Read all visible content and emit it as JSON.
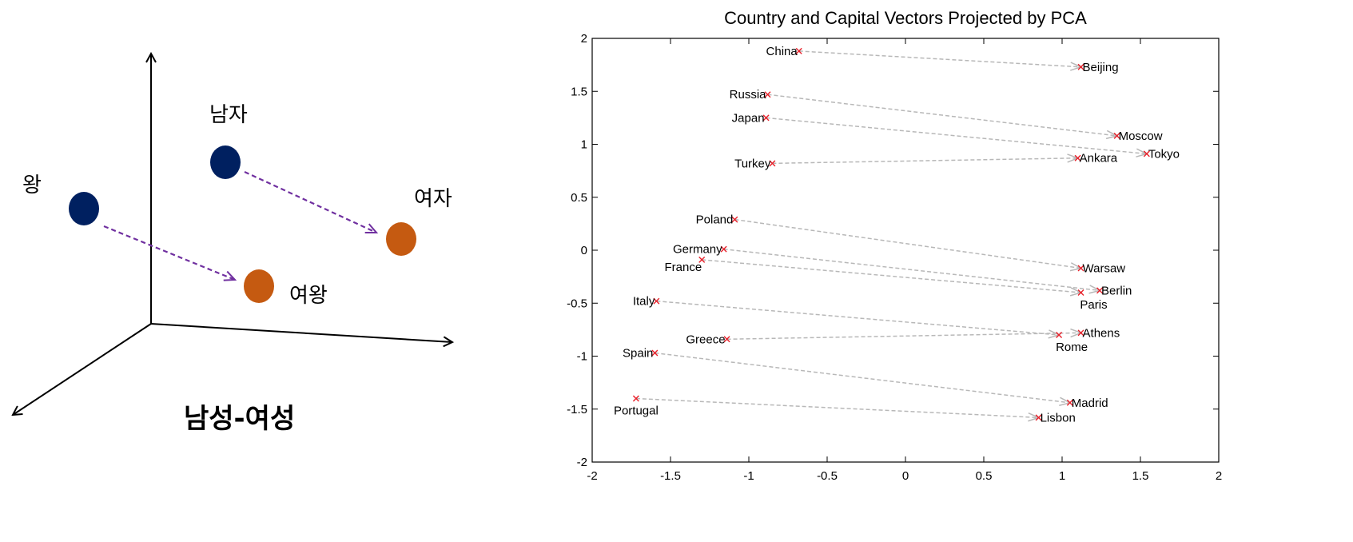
{
  "left_diagram": {
    "words": {
      "king": "왕",
      "man": "남자",
      "woman": "여자",
      "queen": "여왕"
    },
    "caption": "남성-여성",
    "colors": {
      "male_dot": "#002060",
      "female_dot": "#C55A11",
      "arrow": "#7030A0",
      "axis": "#000000"
    }
  },
  "chart_data": {
    "type": "scatter",
    "title": "Country and Capital Vectors Projected by PCA",
    "xlim": [
      -2,
      2
    ],
    "ylim": [
      -2,
      2
    ],
    "xticks": [
      -2,
      -1.5,
      -1,
      -0.5,
      0,
      0.5,
      1,
      1.5,
      2
    ],
    "yticks": [
      2,
      1.5,
      1,
      0.5,
      0,
      -0.5,
      -1,
      -1.5,
      -2
    ],
    "xtick_labels": [
      "-2",
      "-1.5",
      "-1",
      "-0.5",
      "0",
      "0.5",
      "1",
      "1.5",
      "2"
    ],
    "ytick_labels": [
      "2",
      "1.5",
      "1",
      "0.5",
      "0",
      "-0.5",
      "-1",
      "-1.5",
      "-2"
    ],
    "marker_color": "#E8202A",
    "arrow_color": "#B8B8B8",
    "pairs": [
      {
        "country": "China",
        "cx": -0.68,
        "cy": 1.88,
        "capital": "Beijing",
        "px": 1.12,
        "py": 1.73
      },
      {
        "country": "Russia",
        "cx": -0.88,
        "cy": 1.47,
        "capital": "Moscow",
        "px": 1.35,
        "py": 1.08
      },
      {
        "country": "Japan",
        "cx": -0.89,
        "cy": 1.25,
        "capital": "Tokyo",
        "px": 1.54,
        "py": 0.91
      },
      {
        "country": "Turkey",
        "cx": -0.85,
        "cy": 0.82,
        "capital": "Ankara",
        "px": 1.1,
        "py": 0.87
      },
      {
        "country": "Poland",
        "cx": -1.09,
        "cy": 0.29,
        "capital": "Warsaw",
        "px": 1.12,
        "py": -0.17
      },
      {
        "country": "Germany",
        "cx": -1.16,
        "cy": 0.01,
        "capital": "Berlin",
        "px": 1.24,
        "py": -0.38
      },
      {
        "country": "France",
        "cx": -1.3,
        "cy": -0.09,
        "capital": "Paris",
        "px": 1.12,
        "py": -0.4
      },
      {
        "country": "Italy",
        "cx": -1.59,
        "cy": -0.48,
        "capital": "Rome",
        "px": 0.98,
        "py": -0.8
      },
      {
        "country": "Greece",
        "cx": -1.14,
        "cy": -0.84,
        "capital": "Athens",
        "px": 1.12,
        "py": -0.78
      },
      {
        "country": "Spain",
        "cx": -1.6,
        "cy": -0.97,
        "capital": "Madrid",
        "px": 1.05,
        "py": -1.44
      },
      {
        "country": "Portugal",
        "cx": -1.72,
        "cy": -1.4,
        "capital": "Lisbon",
        "px": 0.85,
        "py": -1.58
      }
    ]
  }
}
